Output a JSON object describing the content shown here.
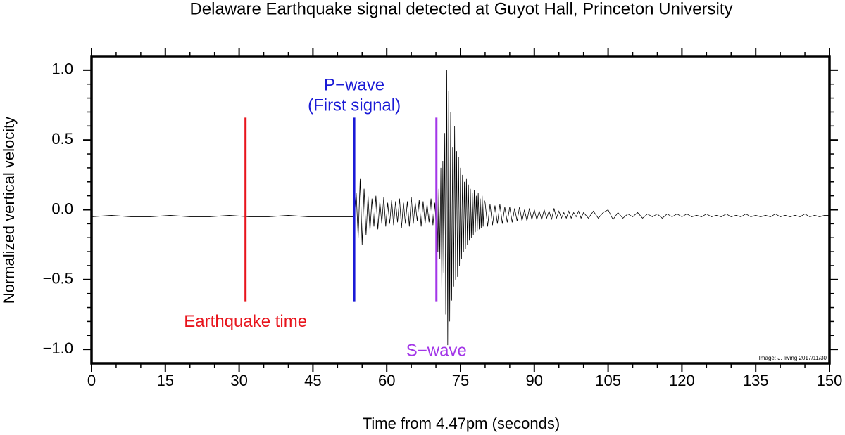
{
  "chart_data": {
    "type": "line",
    "title": "Delaware Earthquake signal detected at Guyot Hall, Princeton University",
    "xlabel": "Time from 4.47pm (seconds)",
    "ylabel": "Normalized vertical velocity",
    "credit": "Image: J. Irving 2017/11/30",
    "xlim": [
      0,
      150
    ],
    "ylim": [
      -1.1,
      1.1
    ],
    "xticks": [
      0,
      15,
      30,
      45,
      60,
      75,
      90,
      105,
      120,
      135,
      150
    ],
    "yticks": [
      {
        "value": 1.0,
        "label": "1.0"
      },
      {
        "value": 0.5,
        "label": "0.5"
      },
      {
        "value": 0.0,
        "label": "0.0"
      },
      {
        "value": -0.5,
        "label": "−0.5"
      },
      {
        "value": -1.0,
        "label": "−1.0"
      }
    ],
    "markers": [
      {
        "x": 31.3,
        "y_range": [
          -0.66,
          0.66
        ],
        "color": "#e8141c",
        "label": [
          "Earthquake time"
        ],
        "label_pos": "below"
      },
      {
        "x": 53.4,
        "y_range": [
          -0.66,
          0.66
        ],
        "color": "#1a1ad6",
        "label": [
          "P−wave",
          "(First signal)"
        ],
        "label_pos": "above"
      },
      {
        "x": 70.1,
        "y_range": [
          -0.66,
          0.66
        ],
        "color": "#a336e8",
        "label": [
          "S−wave"
        ],
        "label_pos": "bottom"
      }
    ],
    "series": [
      {
        "color": "#000000",
        "x": [
          0,
          4,
          8,
          12,
          16,
          20,
          24,
          28,
          32,
          36,
          40,
          44,
          48,
          52,
          53.4,
          53.8,
          54.2,
          54.6,
          55.0,
          55.4,
          55.8,
          56.2,
          56.6,
          57.0,
          57.4,
          57.8,
          58.2,
          58.6,
          59.0,
          59.4,
          59.8,
          60.2,
          60.6,
          61.0,
          61.4,
          61.8,
          62.2,
          62.6,
          63.0,
          63.4,
          63.8,
          64.2,
          64.6,
          65.0,
          65.4,
          65.8,
          66.2,
          66.6,
          67.0,
          67.4,
          67.8,
          68.2,
          68.6,
          69.0,
          69.4,
          69.8,
          70.0,
          70.2,
          70.4,
          70.6,
          70.8,
          71.0,
          71.2,
          71.4,
          71.6,
          71.8,
          72.0,
          72.2,
          72.4,
          72.6,
          72.8,
          73.0,
          73.2,
          73.4,
          73.6,
          73.8,
          74.0,
          74.2,
          74.4,
          74.6,
          74.8,
          75.0,
          75.2,
          75.4,
          75.6,
          75.8,
          76.0,
          76.2,
          76.4,
          76.6,
          76.8,
          77.0,
          77.2,
          77.4,
          77.6,
          77.8,
          78.0,
          78.2,
          78.4,
          78.6,
          78.8,
          79.0,
          79.2,
          79.4,
          79.6,
          79.8,
          80,
          80.5,
          81,
          81.5,
          82,
          82.5,
          83,
          83.5,
          84,
          84.5,
          85,
          85.5,
          86,
          86.5,
          87,
          87.5,
          88,
          88.5,
          89,
          89.5,
          90,
          90.5,
          91,
          91.5,
          92,
          92.5,
          93,
          93.5,
          94,
          94.5,
          95,
          95.5,
          96,
          96.5,
          97,
          97.5,
          98,
          98.5,
          99,
          99.5,
          100,
          101,
          102,
          103,
          104,
          105,
          106,
          107,
          108,
          109,
          110,
          111,
          112,
          113,
          114,
          115,
          116,
          117,
          118,
          119,
          120,
          121,
          122,
          123,
          124,
          125,
          126,
          127,
          128,
          129,
          130,
          131,
          132,
          133,
          134,
          135,
          136,
          137,
          138,
          139,
          140,
          141,
          142,
          143,
          144,
          145,
          146,
          147,
          148,
          149,
          150
        ],
        "values": [
          -0.05,
          -0.04,
          -0.05,
          -0.05,
          -0.04,
          -0.05,
          -0.05,
          -0.04,
          -0.05,
          -0.05,
          -0.04,
          -0.05,
          -0.05,
          -0.05,
          -0.05,
          0.12,
          -0.2,
          0.22,
          -0.25,
          0.15,
          -0.18,
          0.1,
          -0.15,
          0.08,
          -0.12,
          0.1,
          -0.14,
          0.06,
          -0.1,
          0.09,
          -0.12,
          0.05,
          -0.1,
          0.07,
          -0.11,
          0.06,
          -0.09,
          0.08,
          -0.13,
          0.05,
          -0.1,
          0.06,
          -0.12,
          0.09,
          -0.1,
          0.05,
          -0.08,
          0.07,
          -0.12,
          0.06,
          -0.1,
          0.04,
          -0.09,
          0.08,
          -0.11,
          0.05,
          -0.1,
          0.2,
          -0.3,
          0.15,
          -0.35,
          0.3,
          -0.6,
          0.35,
          -0.45,
          0.55,
          -0.75,
          1.0,
          -0.97,
          0.85,
          -0.8,
          0.7,
          -0.65,
          0.45,
          -0.55,
          0.6,
          -0.5,
          0.42,
          -0.48,
          0.38,
          -0.4,
          0.3,
          -0.35,
          0.25,
          -0.3,
          0.2,
          -0.28,
          0.22,
          -0.25,
          0.18,
          -0.22,
          0.15,
          -0.2,
          0.12,
          -0.18,
          0.14,
          -0.16,
          0.1,
          -0.15,
          0.12,
          -0.14,
          0.08,
          -0.13,
          0.1,
          -0.12,
          0.07,
          0.05,
          -0.12,
          0.04,
          -0.11,
          0.03,
          -0.1,
          0.04,
          -0.1,
          0.02,
          -0.09,
          0.02,
          -0.09,
          0.01,
          -0.08,
          0.02,
          -0.08,
          0.0,
          -0.08,
          0.01,
          -0.07,
          0.0,
          -0.07,
          -0.01,
          -0.07,
          0.0,
          -0.06,
          -0.01,
          -0.07,
          0.01,
          -0.06,
          -0.01,
          -0.06,
          -0.02,
          -0.06,
          -0.01,
          -0.06,
          -0.02,
          -0.05,
          -0.01,
          -0.06,
          -0.02,
          -0.06,
          -0.01,
          -0.06,
          -0.02,
          0.0,
          -0.07,
          -0.02,
          -0.06,
          -0.03,
          -0.05,
          -0.02,
          -0.06,
          -0.03,
          -0.05,
          -0.03,
          -0.06,
          -0.03,
          -0.05,
          -0.03,
          -0.05,
          -0.03,
          -0.05,
          -0.04,
          -0.05,
          -0.03,
          -0.05,
          -0.04,
          -0.05,
          -0.03,
          -0.05,
          -0.04,
          -0.05,
          -0.03,
          -0.05,
          -0.04,
          -0.05,
          -0.04,
          -0.05,
          -0.03,
          -0.05,
          -0.04,
          -0.05,
          -0.04,
          -0.05,
          -0.03,
          -0.05,
          -0.04,
          -0.05,
          -0.04,
          -0.04
        ]
      }
    ]
  }
}
